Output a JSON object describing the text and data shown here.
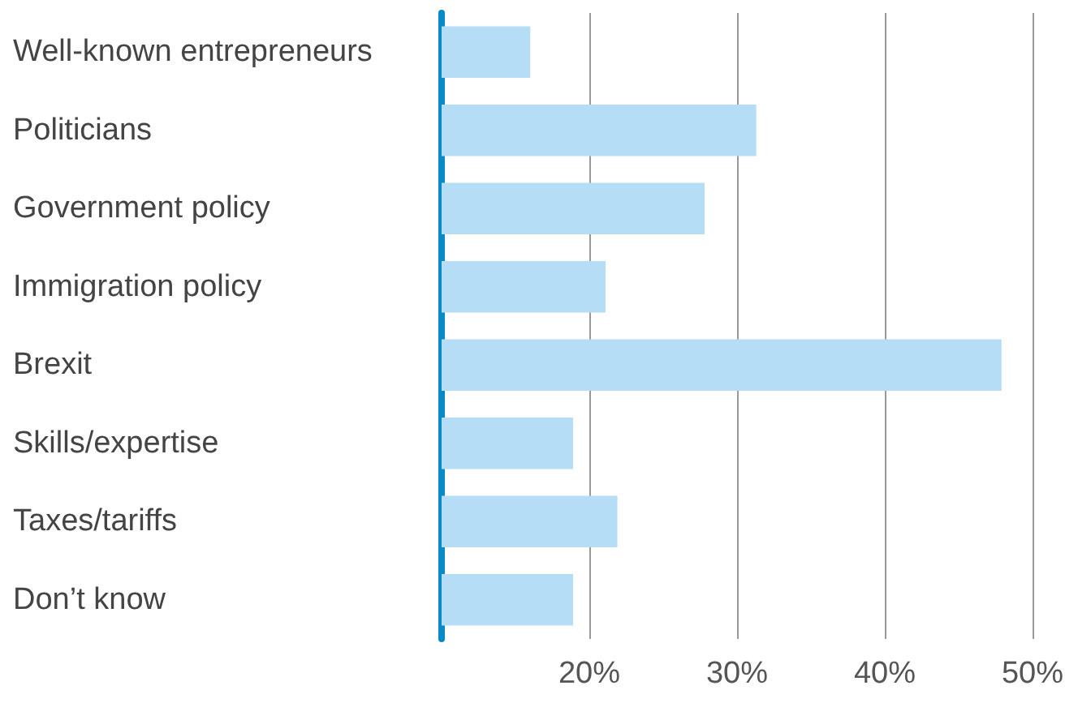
{
  "chart_data": {
    "type": "bar",
    "orientation": "horizontal",
    "categories": [
      "Well-known entrepreneurs",
      "Politicians",
      "Government policy",
      "Immigration policy",
      "Brexit",
      "Skills/expertise",
      "Taxes/tariffs",
      "Don’t know"
    ],
    "values": [
      16,
      31.3,
      27.8,
      21.1,
      47.9,
      18.9,
      21.9,
      18.9
    ],
    "color": "#b5ddf5",
    "xlim": [
      10,
      50
    ],
    "xticks": [
      {
        "value": 20,
        "label": "20%"
      },
      {
        "value": 30,
        "label": "30%"
      },
      {
        "value": 40,
        "label": "40%"
      },
      {
        "value": 50,
        "label": "50%"
      }
    ],
    "grid": "x"
  }
}
